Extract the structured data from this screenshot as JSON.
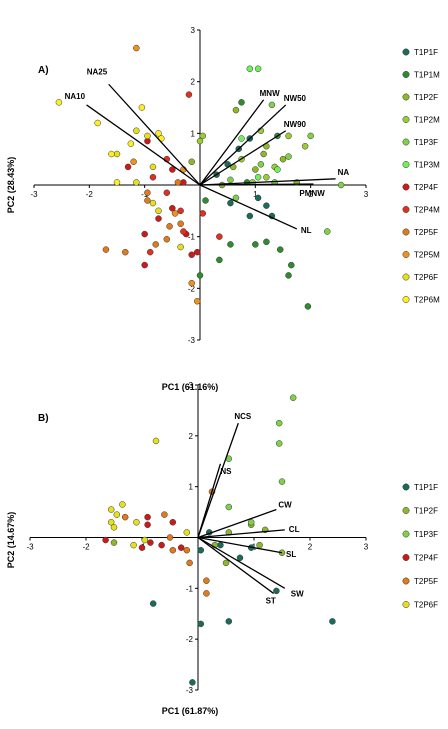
{
  "colors": {
    "T1P1F": "#1a6b5a",
    "T1P1M": "#2e8b2e",
    "T1P2F": "#8db82a",
    "T1P2M": "#9acd32",
    "T1P3F": "#7fd14a",
    "T1P3M": "#6ff05a",
    "T2P4F": "#cc1a1a",
    "T2P4M": "#e0301e",
    "T2P5F": "#e07a1a",
    "T2P5M": "#f0901e",
    "T2P6F": "#e6e01a",
    "T2P6M": "#ffee22"
  },
  "chart_data": [
    {
      "type": "scatter",
      "panel_label": "A)",
      "xlabel": "PC1 (61.16%)",
      "ylabel": "PC2 (28.43%)",
      "xlim": [
        -3,
        3
      ],
      "ylim": [
        -3,
        3
      ],
      "x_ticks": [
        "-3",
        "-2",
        "-1",
        "1",
        "2",
        "3"
      ],
      "y_ticks": [
        "-3",
        "-2",
        "-1",
        "1",
        "2",
        "3"
      ],
      "legend": [
        "T1P1F",
        "T1P1M",
        "T1P2F",
        "T1P2M",
        "T1P3F",
        "T1P3M",
        "T2P4F",
        "T2P4M",
        "T2P5F",
        "T2P5M",
        "T2P6F",
        "T2P6M"
      ],
      "legend_position": "right",
      "vectors": [
        {
          "label": "NA25",
          "x": -1.65,
          "y": 1.95
        },
        {
          "label": "NA10",
          "x": -2.05,
          "y": 1.55
        },
        {
          "label": "MNW",
          "x": 1.15,
          "y": 1.65
        },
        {
          "label": "NW50",
          "x": 1.55,
          "y": 1.55
        },
        {
          "label": "NW90",
          "x": 1.55,
          "y": 1.05
        },
        {
          "label": "NA",
          "x": 2.45,
          "y": 0.12
        },
        {
          "label": "PMNW",
          "x": 2.05,
          "y": 0.02
        },
        {
          "label": "NL",
          "x": 1.75,
          "y": -0.85
        }
      ],
      "points": [
        {
          "g": "T1P1F",
          "x": 0.55,
          "y": -0.35
        },
        {
          "g": "T1P1F",
          "x": 1.2,
          "y": -0.4
        },
        {
          "g": "T1P1F",
          "x": 1.3,
          "y": -0.6
        },
        {
          "g": "T1P1F",
          "x": 0.9,
          "y": -0.6
        },
        {
          "g": "T1P1F",
          "x": 0.7,
          "y": 0.7
        },
        {
          "g": "T1P1F",
          "x": 0.5,
          "y": 0.4
        },
        {
          "g": "T1P1F",
          "x": 0.9,
          "y": 0.9
        },
        {
          "g": "T1P1F",
          "x": 0.3,
          "y": 0.2
        },
        {
          "g": "T1P1F",
          "x": 1.05,
          "y": -0.25
        },
        {
          "g": "T1P1M",
          "x": 1.65,
          "y": -1.55
        },
        {
          "g": "T1P1M",
          "x": 0.75,
          "y": 1.6
        },
        {
          "g": "T1P1M",
          "x": 0.55,
          "y": -1.15
        },
        {
          "g": "T1P1M",
          "x": 1.2,
          "y": -1.1
        },
        {
          "g": "T1P1M",
          "x": 1.6,
          "y": -1.75
        },
        {
          "g": "T1P1M",
          "x": 0.0,
          "y": -1.75
        },
        {
          "g": "T1P1M",
          "x": 1.45,
          "y": -1.25
        },
        {
          "g": "T1P1M",
          "x": 1.95,
          "y": -2.35
        },
        {
          "g": "T1P1M",
          "x": 1.0,
          "y": -1.15
        },
        {
          "g": "T1P1M",
          "x": 0.35,
          "y": -1.45
        },
        {
          "g": "T1P1M",
          "x": 1.4,
          "y": 0.95
        },
        {
          "g": "T1P1M",
          "x": 0.85,
          "y": 0.05
        },
        {
          "g": "T1P1M",
          "x": 0.1,
          "y": -0.3
        },
        {
          "g": "T1P2F",
          "x": 1.15,
          "y": 0.6
        },
        {
          "g": "T1P2F",
          "x": 1.75,
          "y": 0.05
        },
        {
          "g": "T1P2F",
          "x": 0.6,
          "y": 0.35
        },
        {
          "g": "T1P2F",
          "x": 1.0,
          "y": 0.3
        },
        {
          "g": "T1P2F",
          "x": 0.4,
          "y": 0.0
        },
        {
          "g": "T1P2F",
          "x": 1.5,
          "y": 0.5
        },
        {
          "g": "T1P2F",
          "x": -0.15,
          "y": 0.45
        },
        {
          "g": "T1P2F",
          "x": 1.2,
          "y": 0.75
        },
        {
          "g": "T1P2F",
          "x": 0.65,
          "y": 1.45
        },
        {
          "g": "T1P2M",
          "x": 1.9,
          "y": 0.75
        },
        {
          "g": "T1P2M",
          "x": 1.6,
          "y": 0.95
        },
        {
          "g": "T1P2M",
          "x": 0.0,
          "y": 0.85
        },
        {
          "g": "T1P2M",
          "x": 1.1,
          "y": 1.05
        },
        {
          "g": "T1P2M",
          "x": 0.95,
          "y": 0.05
        },
        {
          "g": "T1P2M",
          "x": 0.05,
          "y": 0.95
        },
        {
          "g": "T1P2M",
          "x": 0.75,
          "y": 0.5
        },
        {
          "g": "T1P2M",
          "x": 1.35,
          "y": 0.35
        },
        {
          "g": "T1P2M",
          "x": 1.2,
          "y": 0.15
        },
        {
          "g": "T1P3F",
          "x": 2.3,
          "y": -0.9
        },
        {
          "g": "T1P3F",
          "x": 1.6,
          "y": 0.55
        },
        {
          "g": "T1P3F",
          "x": 2.0,
          "y": 0.95
        },
        {
          "g": "T1P3F",
          "x": 0.55,
          "y": 0.1
        },
        {
          "g": "T1P3F",
          "x": 1.35,
          "y": 0.05
        },
        {
          "g": "T1P3F",
          "x": 0.65,
          "y": -0.25
        },
        {
          "g": "T1P3F",
          "x": 1.1,
          "y": 0.4
        },
        {
          "g": "T1P3F",
          "x": 2.55,
          "y": 0.0
        },
        {
          "g": "T1P3F",
          "x": 1.3,
          "y": 1.55
        },
        {
          "g": "T1P3M",
          "x": 0.9,
          "y": 2.25
        },
        {
          "g": "T1P3M",
          "x": 1.05,
          "y": 2.25
        },
        {
          "g": "T1P3M",
          "x": 0.75,
          "y": 0.9
        },
        {
          "g": "T1P3M",
          "x": 1.4,
          "y": 0.3
        },
        {
          "g": "T1P3M",
          "x": 1.05,
          "y": 0.15
        },
        {
          "g": "T2P4F",
          "x": -0.5,
          "y": -0.45
        },
        {
          "g": "T2P4F",
          "x": -0.25,
          "y": -0.95
        },
        {
          "g": "T2P4F",
          "x": -0.5,
          "y": 0.3
        },
        {
          "g": "T2P4F",
          "x": -0.75,
          "y": -0.65
        },
        {
          "g": "T2P4F",
          "x": -1.0,
          "y": -0.95
        },
        {
          "g": "T2P4F",
          "x": -0.95,
          "y": 0.85
        },
        {
          "g": "T2P4F",
          "x": -0.15,
          "y": -1.35
        },
        {
          "g": "T2P4F",
          "x": -1.3,
          "y": 0.35
        },
        {
          "g": "T2P4F",
          "x": -0.3,
          "y": 0.05
        },
        {
          "g": "T2P4F",
          "x": -1.0,
          "y": -1.55
        },
        {
          "g": "T2P4F",
          "x": -0.05,
          "y": -1.3
        },
        {
          "g": "T2P4M",
          "x": -0.2,
          "y": 1.75
        },
        {
          "g": "T2P4M",
          "x": -0.85,
          "y": 0.15
        },
        {
          "g": "T2P4M",
          "x": 0.35,
          "y": -1.0
        },
        {
          "g": "T2P4M",
          "x": -0.3,
          "y": -0.9
        },
        {
          "g": "T2P4M",
          "x": -0.6,
          "y": -0.15
        },
        {
          "g": "T2P4M",
          "x": -0.35,
          "y": -0.5
        },
        {
          "g": "T2P4M",
          "x": -0.9,
          "y": -1.3
        },
        {
          "g": "T2P4M",
          "x": 0.05,
          "y": -0.55
        },
        {
          "g": "T2P4M",
          "x": -0.6,
          "y": 0.5
        },
        {
          "g": "T2P5F",
          "x": -0.4,
          "y": 0.05
        },
        {
          "g": "T2P5F",
          "x": -1.7,
          "y": -1.25
        },
        {
          "g": "T2P5F",
          "x": -0.8,
          "y": -1.15
        },
        {
          "g": "T2P5F",
          "x": -0.6,
          "y": -1.05
        },
        {
          "g": "T2P5F",
          "x": -0.95,
          "y": -0.15
        },
        {
          "g": "T2P5F",
          "x": -0.55,
          "y": -0.8
        },
        {
          "g": "T2P5F",
          "x": -1.35,
          "y": -1.3
        },
        {
          "g": "T2P5F",
          "x": -0.95,
          "y": -0.3
        },
        {
          "g": "T2P5F",
          "x": -0.35,
          "y": -0.75
        },
        {
          "g": "T2P5M",
          "x": -1.15,
          "y": 2.65
        },
        {
          "g": "T2P5M",
          "x": -0.45,
          "y": -0.55
        },
        {
          "g": "T2P5M",
          "x": -0.05,
          "y": -2.25
        },
        {
          "g": "T2P5M",
          "x": -0.15,
          "y": -1.9
        },
        {
          "g": "T2P5M",
          "x": -1.2,
          "y": 0.45
        },
        {
          "g": "T2P5M",
          "x": -0.3,
          "y": 0.3
        },
        {
          "g": "T2P6F",
          "x": -1.15,
          "y": 1.05
        },
        {
          "g": "T2P6F",
          "x": -1.5,
          "y": 0.6
        },
        {
          "g": "T2P6F",
          "x": -0.75,
          "y": -0.5
        },
        {
          "g": "T2P6F",
          "x": -0.95,
          "y": 0.95
        },
        {
          "g": "T2P6F",
          "x": -0.85,
          "y": 0.35
        },
        {
          "g": "T2P6F",
          "x": -0.35,
          "y": -1.2
        },
        {
          "g": "T2P6F",
          "x": -1.15,
          "y": 0.05
        },
        {
          "g": "T2P6F",
          "x": -0.85,
          "y": -0.35
        },
        {
          "g": "T2P6M",
          "x": -2.55,
          "y": 1.6
        },
        {
          "g": "T2P6M",
          "x": -1.05,
          "y": 1.5
        },
        {
          "g": "T2P6M",
          "x": -1.6,
          "y": 0.6
        },
        {
          "g": "T2P6M",
          "x": -0.75,
          "y": 1.0
        },
        {
          "g": "T2P6M",
          "x": -1.25,
          "y": 0.8
        },
        {
          "g": "T2P6M",
          "x": -1.5,
          "y": 0.05
        },
        {
          "g": "T2P6M",
          "x": -0.7,
          "y": 0.9
        },
        {
          "g": "T2P6M",
          "x": -1.85,
          "y": 1.2
        }
      ]
    },
    {
      "type": "scatter",
      "panel_label": "B)",
      "xlabel": "PC1 (61.87%)",
      "ylabel": "PC2 (14.67%)",
      "xlim": [
        -3,
        3
      ],
      "ylim": [
        -3,
        3
      ],
      "x_ticks": [
        "-3",
        "-2",
        "-1",
        "1",
        "2",
        "3"
      ],
      "y_ticks": [
        "-3",
        "-2",
        "-1",
        "1",
        "2",
        "3"
      ],
      "legend": [
        "T1P1F",
        "T1P2F",
        "T1P3F",
        "T2P4F",
        "T2P5F",
        "T2P6F"
      ],
      "legend_position": "right",
      "vectors": [
        {
          "label": "NCS",
          "x": 0.72,
          "y": 2.25
        },
        {
          "label": "NS",
          "x": 0.4,
          "y": 1.45
        },
        {
          "label": "CW",
          "x": 1.4,
          "y": 0.55
        },
        {
          "label": "CL",
          "x": 1.55,
          "y": 0.15
        },
        {
          "label": "SL",
          "x": 1.5,
          "y": -0.3
        },
        {
          "label": "ST",
          "x": 1.35,
          "y": -1.1
        },
        {
          "label": "SW",
          "x": 1.55,
          "y": -1.0
        }
      ],
      "points": [
        {
          "g": "T1P1F",
          "x": 0.05,
          "y": -1.7
        },
        {
          "g": "T1P1F",
          "x": -0.1,
          "y": -2.85
        },
        {
          "g": "T1P1F",
          "x": 0.55,
          "y": -1.65
        },
        {
          "g": "T1P1F",
          "x": 1.4,
          "y": -1.05
        },
        {
          "g": "T1P1F",
          "x": 2.4,
          "y": -1.65
        },
        {
          "g": "T1P1F",
          "x": 0.2,
          "y": 0.1
        },
        {
          "g": "T1P1F",
          "x": 0.4,
          "y": -0.15
        },
        {
          "g": "T1P1F",
          "x": 0.75,
          "y": -0.4
        },
        {
          "g": "T1P1F",
          "x": 0.95,
          "y": -0.2
        },
        {
          "g": "T1P1F",
          "x": -0.8,
          "y": -1.3
        },
        {
          "g": "T1P1F",
          "x": 0.05,
          "y": -0.25
        },
        {
          "g": "T1P2F",
          "x": 1.5,
          "y": -0.3
        },
        {
          "g": "T1P2F",
          "x": 0.95,
          "y": 0.25
        },
        {
          "g": "T1P2F",
          "x": 0.5,
          "y": -0.5
        },
        {
          "g": "T1P2F",
          "x": 1.2,
          "y": 0.15
        },
        {
          "g": "T1P2F",
          "x": 0.3,
          "y": -0.15
        },
        {
          "g": "T1P2F",
          "x": -1.5,
          "y": -0.1
        },
        {
          "g": "T1P2F",
          "x": 1.1,
          "y": -0.15
        },
        {
          "g": "T1P2F",
          "x": 0.55,
          "y": 0.1
        },
        {
          "g": "T1P3F",
          "x": 1.7,
          "y": 2.75
        },
        {
          "g": "T1P3F",
          "x": 1.45,
          "y": 2.25
        },
        {
          "g": "T1P3F",
          "x": 1.45,
          "y": 1.85
        },
        {
          "g": "T1P3F",
          "x": 1.5,
          "y": 1.1
        },
        {
          "g": "T1P3F",
          "x": 0.55,
          "y": 1.55
        },
        {
          "g": "T1P3F",
          "x": 0.55,
          "y": 0.6
        },
        {
          "g": "T1P3F",
          "x": 0.95,
          "y": 0.3
        },
        {
          "g": "T2P4F",
          "x": -1.65,
          "y": -0.05
        },
        {
          "g": "T2P4F",
          "x": -0.9,
          "y": 0.4
        },
        {
          "g": "T2P4F",
          "x": -0.65,
          "y": -0.15
        },
        {
          "g": "T2P4F",
          "x": -0.45,
          "y": 0.3
        },
        {
          "g": "T2P4F",
          "x": -0.3,
          "y": -0.2
        },
        {
          "g": "T2P4F",
          "x": -1.0,
          "y": -0.2
        },
        {
          "g": "T2P4F",
          "x": -0.9,
          "y": 0.25
        },
        {
          "g": "T2P4F",
          "x": -0.85,
          "y": -0.1
        },
        {
          "g": "T2P5F",
          "x": 0.25,
          "y": 0.9
        },
        {
          "g": "T2P5F",
          "x": -0.6,
          "y": 0.45
        },
        {
          "g": "T2P5F",
          "x": -0.45,
          "y": -0.25
        },
        {
          "g": "T2P5F",
          "x": -0.15,
          "y": -0.5
        },
        {
          "g": "T2P5F",
          "x": -0.2,
          "y": -0.25
        },
        {
          "g": "T2P5F",
          "x": 0.15,
          "y": -0.85
        },
        {
          "g": "T2P5F",
          "x": 0.15,
          "y": -1.1
        },
        {
          "g": "T2P5F",
          "x": -0.5,
          "y": 0.0
        },
        {
          "g": "T2P5F",
          "x": -1.3,
          "y": 0.4
        },
        {
          "g": "T2P6F",
          "x": -0.75,
          "y": 1.9
        },
        {
          "g": "T2P6F",
          "x": -1.35,
          "y": 0.65
        },
        {
          "g": "T2P6F",
          "x": -1.45,
          "y": 0.45
        },
        {
          "g": "T2P6F",
          "x": -1.55,
          "y": 0.3
        },
        {
          "g": "T2P6F",
          "x": -1.1,
          "y": 0.3
        },
        {
          "g": "T2P6F",
          "x": -1.55,
          "y": 0.55
        },
        {
          "g": "T2P6F",
          "x": -1.15,
          "y": -0.15
        },
        {
          "g": "T2P6F",
          "x": -0.95,
          "y": -0.05
        },
        {
          "g": "T2P6F",
          "x": -1.5,
          "y": 0.2
        },
        {
          "g": "T2P6F",
          "x": -0.2,
          "y": 0.1
        }
      ]
    }
  ]
}
